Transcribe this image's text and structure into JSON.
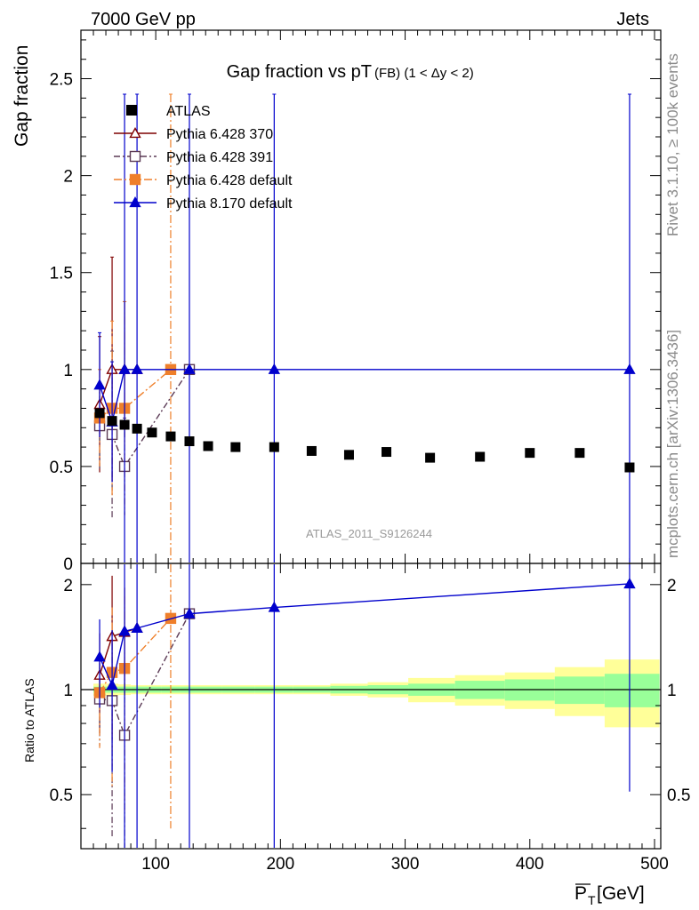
{
  "header": {
    "left": "7000 GeV pp",
    "right": "Jets"
  },
  "side_labels": {
    "rivet": "Rivet 3.1.10, ≥ 100k events",
    "mcplots": "mcplots.cern.ch [arXiv:1306.3436]"
  },
  "chart_data": {
    "type": "scatter",
    "title": "Gap fraction vs pT(FB) (1 < Δy < 2)",
    "title_main": "Gap fraction vs pT",
    "title_sub": "(FB) (1 < Δy < 2)",
    "watermark": "ATLAS_2011_S9126244",
    "xlabel": "P̅T [GeV]",
    "xlabel_main": "P",
    "xlabel_sub": "T",
    "xlabel_unit": " [GeV]",
    "ylabel": "Gap fraction",
    "ratio_ylabel": "Ratio to ATLAS",
    "xlim": [
      40,
      505
    ],
    "ylim": [
      0,
      2.75
    ],
    "ratio_ylim": [
      0.35,
      2.3
    ],
    "x_ticks": [
      100,
      200,
      300,
      400,
      500
    ],
    "y_ticks": [
      0.5,
      1,
      1.5,
      2,
      2.5
    ],
    "y_tick_labels": [
      "0.5",
      "1",
      "1.5",
      "2",
      "2.5"
    ],
    "y_zero_label": "0",
    "ratio_ticks": [
      0.5,
      1,
      2
    ],
    "ratio_tick_labels": [
      "0.5",
      "1",
      "2"
    ],
    "legend_position": "top-left",
    "data": {
      "name": "ATLAS",
      "color": "#000000",
      "x": [
        55,
        65,
        75,
        85,
        97,
        112,
        127,
        142,
        164,
        195,
        225,
        255,
        285,
        320,
        360,
        400,
        440,
        480
      ],
      "y": [
        0.775,
        0.735,
        0.715,
        0.695,
        0.675,
        0.655,
        0.63,
        0.605,
        0.6,
        0.6,
        0.58,
        0.56,
        0.575,
        0.545,
        0.55,
        0.57,
        0.57,
        0.495
      ],
      "rel_err_inner": [
        0.02,
        0.02,
        0.02,
        0.02,
        0.02,
        0.02,
        0.02,
        0.02,
        0.02,
        0.02,
        0.02,
        0.025,
        0.03,
        0.04,
        0.06,
        0.07,
        0.09,
        0.11
      ],
      "rel_err_outer": [
        0.04,
        0.04,
        0.035,
        0.03,
        0.03,
        0.03,
        0.03,
        0.03,
        0.03,
        0.03,
        0.03,
        0.04,
        0.05,
        0.08,
        0.1,
        0.12,
        0.16,
        0.22
      ]
    },
    "series": [
      {
        "name": "Pythia 6.428 370",
        "color": "#7f0000",
        "marker": "triangle-open",
        "dash": "",
        "x": [
          55,
          65,
          75,
          85
        ],
        "y": [
          0.82,
          1.0,
          1.0,
          1.0
        ],
        "err": [
          0.35,
          0.58,
          0.35,
          0.0
        ],
        "ratio": [
          1.1,
          1.42,
          1.46,
          1.5
        ],
        "ratio_err": [
          0.35,
          0.7,
          0.5,
          0.0
        ]
      },
      {
        "name": "Pythia 6.428 391",
        "color": "#5b3a55",
        "marker": "square-open",
        "dash": "7,3,2,3",
        "x": [
          55,
          65,
          75,
          127
        ],
        "y": [
          0.71,
          0.665,
          0.5,
          1.0
        ],
        "err": [
          0.22,
          0.43,
          0.25,
          0.0
        ],
        "ratio": [
          0.94,
          0.93,
          0.74,
          1.65
        ],
        "ratio_err": [
          0.25,
          0.55,
          0.4,
          0.0
        ]
      },
      {
        "name": "Pythia 6.428 default",
        "color": "#ef7f2a",
        "marker": "square",
        "dash": "9,3,2,3",
        "x": [
          55,
          65,
          75,
          112
        ],
        "y": [
          0.75,
          0.8,
          0.8,
          1.0
        ],
        "err": [
          0.25,
          0.45,
          0.55,
          1.42
        ],
        "ratio": [
          0.98,
          1.12,
          1.15,
          1.6
        ],
        "ratio_err": [
          0.3,
          0.6,
          0.7,
          1.2
        ]
      },
      {
        "name": "Pythia 8.170 default",
        "color": "#0000cc",
        "marker": "triangle",
        "dash": "",
        "x": [
          55,
          65,
          75,
          85,
          127,
          195,
          480
        ],
        "y": [
          0.92,
          0.73,
          1.0,
          1.0,
          1.0,
          1.0,
          1.0
        ],
        "err": [
          0.27,
          0.31,
          1.42,
          1.42,
          1.42,
          1.42,
          1.42
        ],
        "ratio": [
          1.24,
          1.03,
          1.47,
          1.5,
          1.65,
          1.72,
          2.01
        ],
        "ratio_err": [
          0.35,
          0.45,
          1.5,
          1.5,
          1.5,
          1.5,
          1.5
        ]
      }
    ]
  }
}
